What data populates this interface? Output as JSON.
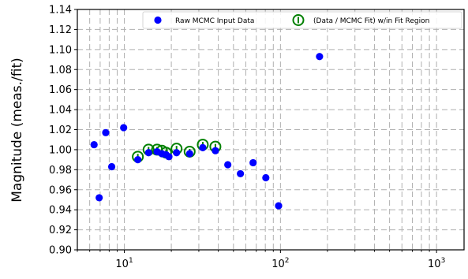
{
  "chart_data": {
    "type": "scatter",
    "title": "",
    "xlabel": "",
    "ylabel": "Magnitude (meas./fit)",
    "x_scale": "log",
    "xlim": [
      5,
      1500
    ],
    "ylim": [
      0.9,
      1.14
    ],
    "grid": true,
    "legend_position": "top-right",
    "y_ticks": [
      "0.90",
      "0.92",
      "0.94",
      "0.96",
      "0.98",
      "1.00",
      "1.02",
      "1.04",
      "1.06",
      "1.08",
      "1.10",
      "1.12",
      "1.14"
    ],
    "x_ticks": [
      {
        "value": 10,
        "base": "10",
        "exp": "1"
      },
      {
        "value": 100,
        "base": "10",
        "exp": "2"
      },
      {
        "value": 1000,
        "base": "10",
        "exp": "3"
      }
    ],
    "series": [
      {
        "name": "Raw MCMC Input Data",
        "marker": "filled-circle",
        "color": "#0000ff",
        "points": [
          {
            "x": 6.4,
            "y": 1.005
          },
          {
            "x": 6.9,
            "y": 0.952
          },
          {
            "x": 7.6,
            "y": 1.017
          },
          {
            "x": 8.3,
            "y": 0.983
          },
          {
            "x": 9.9,
            "y": 1.022
          },
          {
            "x": 12.2,
            "y": 0.99
          },
          {
            "x": 14.3,
            "y": 0.997
          },
          {
            "x": 16.2,
            "y": 0.998
          },
          {
            "x": 17.4,
            "y": 0.996
          },
          {
            "x": 18.5,
            "y": 0.995
          },
          {
            "x": 19.3,
            "y": 0.993
          },
          {
            "x": 21.6,
            "y": 0.997
          },
          {
            "x": 26.2,
            "y": 0.996
          },
          {
            "x": 31.8,
            "y": 1.002
          },
          {
            "x": 38.3,
            "y": 0.999
          },
          {
            "x": 46.0,
            "y": 0.985
          },
          {
            "x": 55.4,
            "y": 0.976
          },
          {
            "x": 66.8,
            "y": 0.987
          },
          {
            "x": 80.6,
            "y": 0.972
          },
          {
            "x": 97.3,
            "y": 0.944
          },
          {
            "x": 178.0,
            "y": 1.093
          }
        ]
      },
      {
        "name": "(Data / MCMC Fit) w/in Fit Region",
        "marker": "open-circle-errorbar",
        "color": "#008000",
        "points": [
          {
            "x": 12.2,
            "y": 0.993
          },
          {
            "x": 14.3,
            "y": 1.0
          },
          {
            "x": 16.2,
            "y": 1.0
          },
          {
            "x": 17.4,
            "y": 0.999
          },
          {
            "x": 18.5,
            "y": 0.997
          },
          {
            "x": 21.6,
            "y": 1.001
          },
          {
            "x": 26.2,
            "y": 0.998
          },
          {
            "x": 31.8,
            "y": 1.005
          },
          {
            "x": 38.3,
            "y": 1.003
          }
        ]
      }
    ]
  }
}
